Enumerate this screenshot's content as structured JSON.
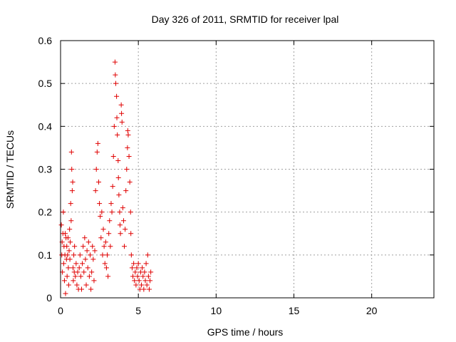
{
  "chart_data": {
    "type": "scatter",
    "title": "Day 326 of 2011, SRMTID for receiver lpal",
    "xlabel": "GPS time / hours",
    "ylabel": "SRMTID / TECUs",
    "xlim": [
      0,
      24
    ],
    "ylim": [
      0,
      0.6
    ],
    "xticks": [
      0,
      5,
      10,
      15,
      20
    ],
    "yticks": [
      0,
      0.1,
      0.2,
      0.3,
      0.4,
      0.5,
      0.6
    ],
    "xtick_labels": [
      "0",
      "5",
      "10",
      "15",
      "20"
    ],
    "ytick_labels": [
      "0",
      "0.1",
      "0.2",
      "0.3",
      "0.4",
      "0.5",
      "0.6"
    ],
    "grid": true,
    "legend": "none",
    "marker": "plus",
    "series": [
      {
        "name": "SRMTID",
        "color": "#e00000",
        "points": [
          [
            0.05,
            0.17
          ],
          [
            0.08,
            0.1
          ],
          [
            0.1,
            0.13
          ],
          [
            0.12,
            0.06
          ],
          [
            0.15,
            0.15
          ],
          [
            0.18,
            0.2
          ],
          [
            0.2,
            0.08
          ],
          [
            0.22,
            0.12
          ],
          [
            0.25,
            0.04
          ],
          [
            0.28,
            0.1
          ],
          [
            0.3,
            0.15
          ],
          [
            0.32,
            0.01
          ],
          [
            0.35,
            0.14
          ],
          [
            0.38,
            0.09
          ],
          [
            0.4,
            0.12
          ],
          [
            0.42,
            0.05
          ],
          [
            0.45,
            0.1
          ],
          [
            0.48,
            0.14
          ],
          [
            0.5,
            0.07
          ],
          [
            0.52,
            0.03
          ],
          [
            0.55,
            0.11
          ],
          [
            0.58,
            0.16
          ],
          [
            0.6,
            0.09
          ],
          [
            0.62,
            0.13
          ],
          [
            0.65,
            0.22
          ],
          [
            0.68,
            0.18
          ],
          [
            0.7,
            0.34
          ],
          [
            0.72,
            0.3
          ],
          [
            0.75,
            0.25
          ],
          [
            0.78,
            0.27
          ],
          [
            0.8,
            0.07
          ],
          [
            0.82,
            0.04
          ],
          [
            0.85,
            0.1
          ],
          [
            0.88,
            0.06
          ],
          [
            0.9,
            0.12
          ],
          [
            0.95,
            0.05
          ],
          [
            1.0,
            0.08
          ],
          [
            1.05,
            0.03
          ],
          [
            1.1,
            0.06
          ],
          [
            1.15,
            0.02
          ],
          [
            1.2,
            0.07
          ],
          [
            1.25,
            0.1
          ],
          [
            1.3,
            0.05
          ],
          [
            1.35,
            0.02
          ],
          [
            1.4,
            0.08
          ],
          [
            1.45,
            0.12
          ],
          [
            1.5,
            0.06
          ],
          [
            1.55,
            0.14
          ],
          [
            1.6,
            0.09
          ],
          [
            1.65,
            0.03
          ],
          [
            1.7,
            0.11
          ],
          [
            1.75,
            0.07
          ],
          [
            1.8,
            0.13
          ],
          [
            1.85,
            0.05
          ],
          [
            1.9,
            0.1
          ],
          [
            1.95,
            0.02
          ],
          [
            2.0,
            0.06
          ],
          [
            2.05,
            0.12
          ],
          [
            2.1,
            0.09
          ],
          [
            2.15,
            0.04
          ],
          [
            2.2,
            0.11
          ],
          [
            2.25,
            0.25
          ],
          [
            2.3,
            0.3
          ],
          [
            2.35,
            0.34
          ],
          [
            2.4,
            0.36
          ],
          [
            2.45,
            0.27
          ],
          [
            2.5,
            0.22
          ],
          [
            2.55,
            0.19
          ],
          [
            2.6,
            0.14
          ],
          [
            2.65,
            0.2
          ],
          [
            2.7,
            0.1
          ],
          [
            2.75,
            0.16
          ],
          [
            2.8,
            0.12
          ],
          [
            2.85,
            0.08
          ],
          [
            2.9,
            0.13
          ],
          [
            2.95,
            0.07
          ],
          [
            3.0,
            0.1
          ],
          [
            3.05,
            0.05
          ],
          [
            3.1,
            0.15
          ],
          [
            3.15,
            0.18
          ],
          [
            3.2,
            0.12
          ],
          [
            3.25,
            0.22
          ],
          [
            3.3,
            0.2
          ],
          [
            3.35,
            0.26
          ],
          [
            3.4,
            0.33
          ],
          [
            3.45,
            0.4
          ],
          [
            3.5,
            0.55
          ],
          [
            3.52,
            0.52
          ],
          [
            3.55,
            0.5
          ],
          [
            3.6,
            0.47
          ],
          [
            3.62,
            0.42
          ],
          [
            3.65,
            0.38
          ],
          [
            3.7,
            0.32
          ],
          [
            3.72,
            0.28
          ],
          [
            3.75,
            0.24
          ],
          [
            3.8,
            0.2
          ],
          [
            3.82,
            0.17
          ],
          [
            3.85,
            0.15
          ],
          [
            3.9,
            0.45
          ],
          [
            3.92,
            0.43
          ],
          [
            3.95,
            0.41
          ],
          [
            4.0,
            0.21
          ],
          [
            4.05,
            0.18
          ],
          [
            4.1,
            0.12
          ],
          [
            4.15,
            0.16
          ],
          [
            4.2,
            0.25
          ],
          [
            4.25,
            0.3
          ],
          [
            4.3,
            0.35
          ],
          [
            4.32,
            0.39
          ],
          [
            4.35,
            0.38
          ],
          [
            4.4,
            0.33
          ],
          [
            4.45,
            0.27
          ],
          [
            4.5,
            0.2
          ],
          [
            4.52,
            0.15
          ],
          [
            4.55,
            0.1
          ],
          [
            4.6,
            0.07
          ],
          [
            4.65,
            0.05
          ],
          [
            4.7,
            0.08
          ],
          [
            4.75,
            0.04
          ],
          [
            4.8,
            0.06
          ],
          [
            4.85,
            0.03
          ],
          [
            4.9,
            0.07
          ],
          [
            4.95,
            0.05
          ],
          [
            5.0,
            0.08
          ],
          [
            5.05,
            0.04
          ],
          [
            5.1,
            0.02
          ],
          [
            5.15,
            0.06
          ],
          [
            5.2,
            0.03
          ],
          [
            5.25,
            0.07
          ],
          [
            5.3,
            0.05
          ],
          [
            5.35,
            0.02
          ],
          [
            5.4,
            0.06
          ],
          [
            5.45,
            0.04
          ],
          [
            5.5,
            0.08
          ],
          [
            5.55,
            0.03
          ],
          [
            5.6,
            0.1
          ],
          [
            5.65,
            0.05
          ],
          [
            5.7,
            0.02
          ],
          [
            5.75,
            0.04
          ],
          [
            5.8,
            0.06
          ]
        ]
      }
    ]
  }
}
